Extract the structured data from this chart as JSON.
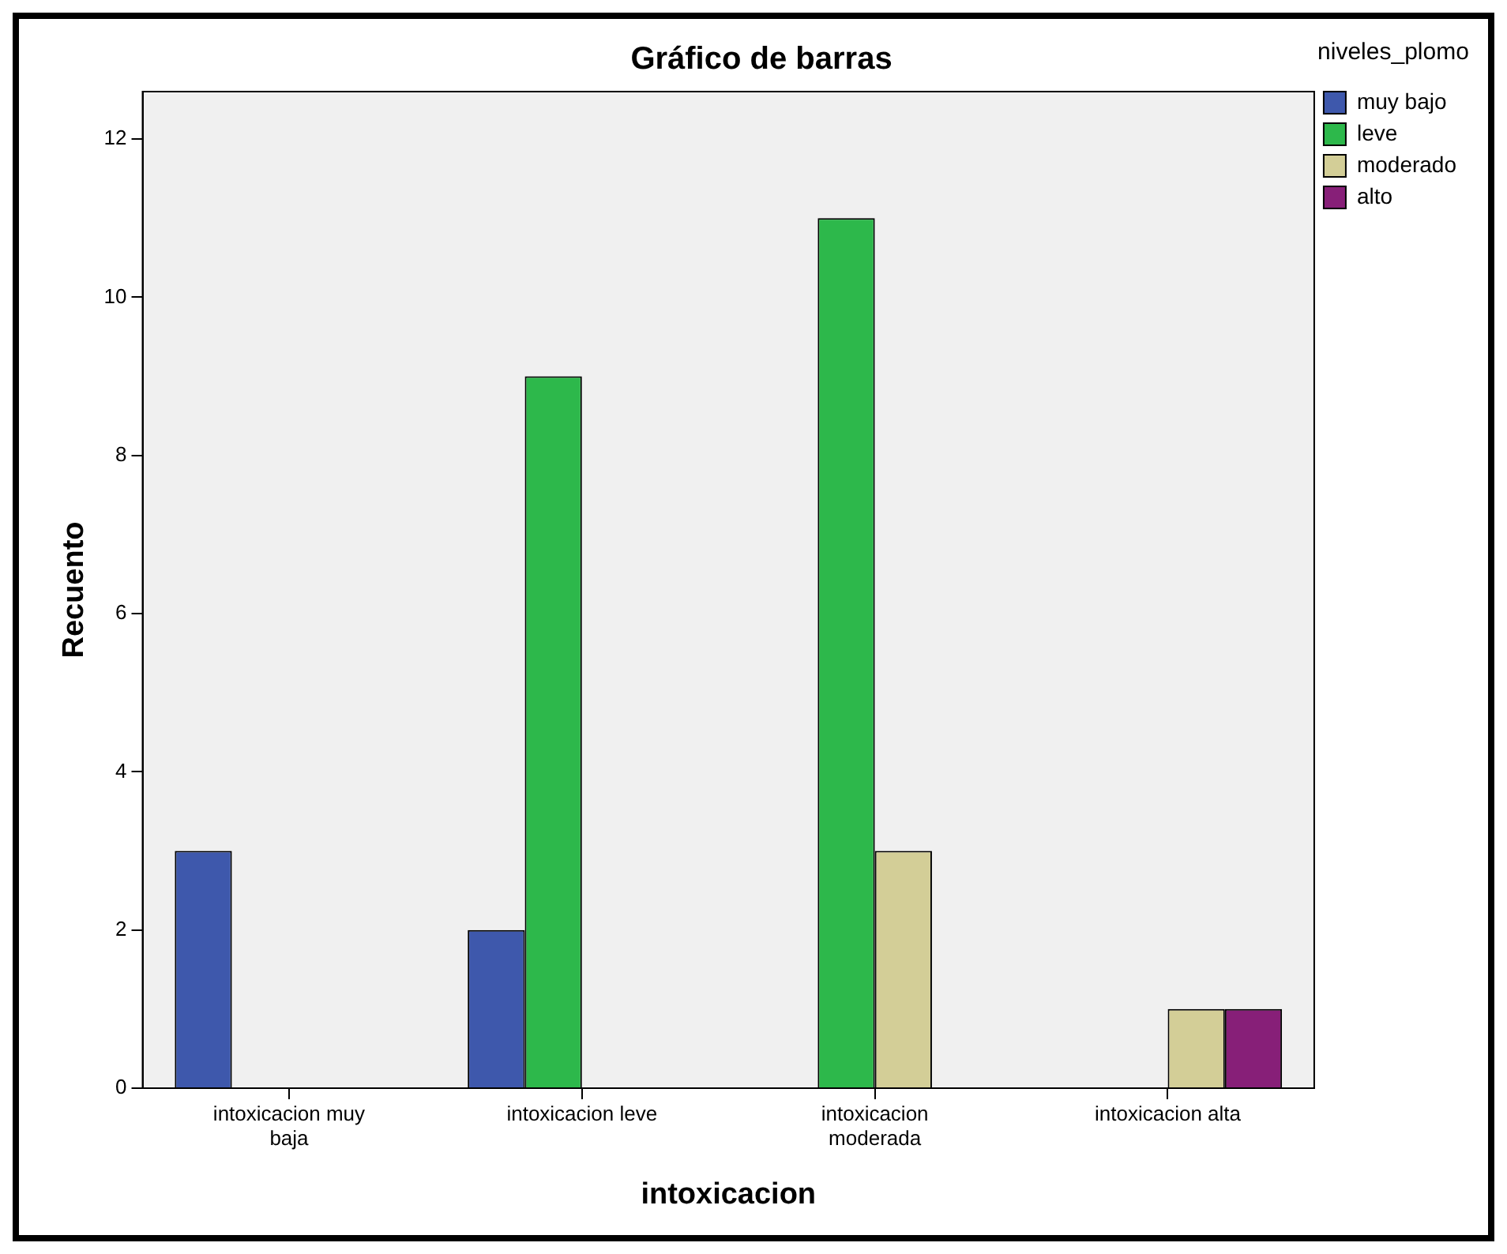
{
  "chart_data": {
    "type": "bar",
    "title": "Gráfico de barras",
    "xlabel": "intoxicacion",
    "ylabel": "Recuento",
    "legend_title": "niveles_plomo",
    "categories": [
      "intoxicacion muy baja",
      "intoxicacion leve",
      "intoxicacion moderada",
      "intoxicacion alta"
    ],
    "series": [
      {
        "name": "muy bajo",
        "color": "#3e58ac",
        "values": [
          3,
          2,
          null,
          null
        ]
      },
      {
        "name": "leve",
        "color": "#2db84b",
        "values": [
          null,
          9,
          11,
          null
        ]
      },
      {
        "name": "moderado",
        "color": "#d3ce97",
        "values": [
          null,
          null,
          3,
          1
        ]
      },
      {
        "name": "alto",
        "color": "#871f78",
        "values": [
          null,
          null,
          null,
          1
        ]
      }
    ],
    "ylim": [
      0,
      12.6
    ],
    "yticks": [
      0,
      2,
      4,
      6,
      8,
      10,
      12
    ],
    "grid": false,
    "legend": "top right"
  }
}
